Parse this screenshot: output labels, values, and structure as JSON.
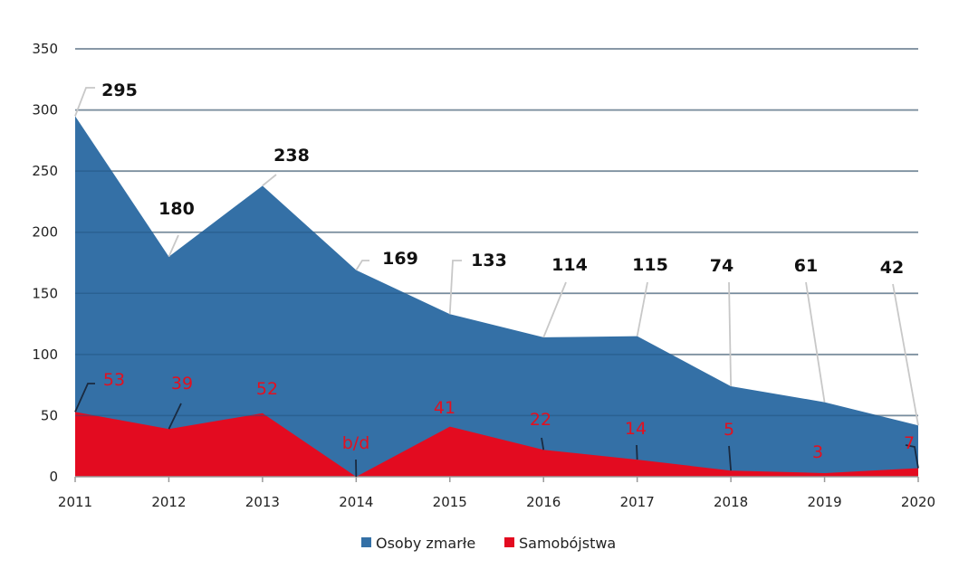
{
  "chart_data": {
    "type": "area",
    "categories": [
      "2011",
      "2012",
      "2013",
      "2014",
      "2015",
      "2016",
      "2017",
      "2018",
      "2019",
      "2020"
    ],
    "ylim": [
      0,
      350
    ],
    "yticks": [
      0,
      50,
      100,
      150,
      200,
      250,
      300,
      350
    ],
    "grid": true,
    "legend_position": "bottom",
    "series": [
      {
        "name": "Osoby zmarłe",
        "color": "#3470a6",
        "values": [
          295,
          180,
          238,
          169,
          133,
          114,
          115,
          74,
          61,
          42
        ],
        "labels": [
          "295",
          "180",
          "238",
          "169",
          "133",
          "114",
          "115",
          "74",
          "61",
          "42"
        ]
      },
      {
        "name": "Samobójstwa",
        "color": "#e30b20",
        "values": [
          53,
          39,
          52,
          null,
          41,
          22,
          14,
          5,
          3,
          7
        ],
        "labels": [
          "53",
          "39",
          "52",
          "b/d",
          "41",
          "22",
          "14",
          "5",
          "3",
          "7"
        ]
      }
    ]
  }
}
